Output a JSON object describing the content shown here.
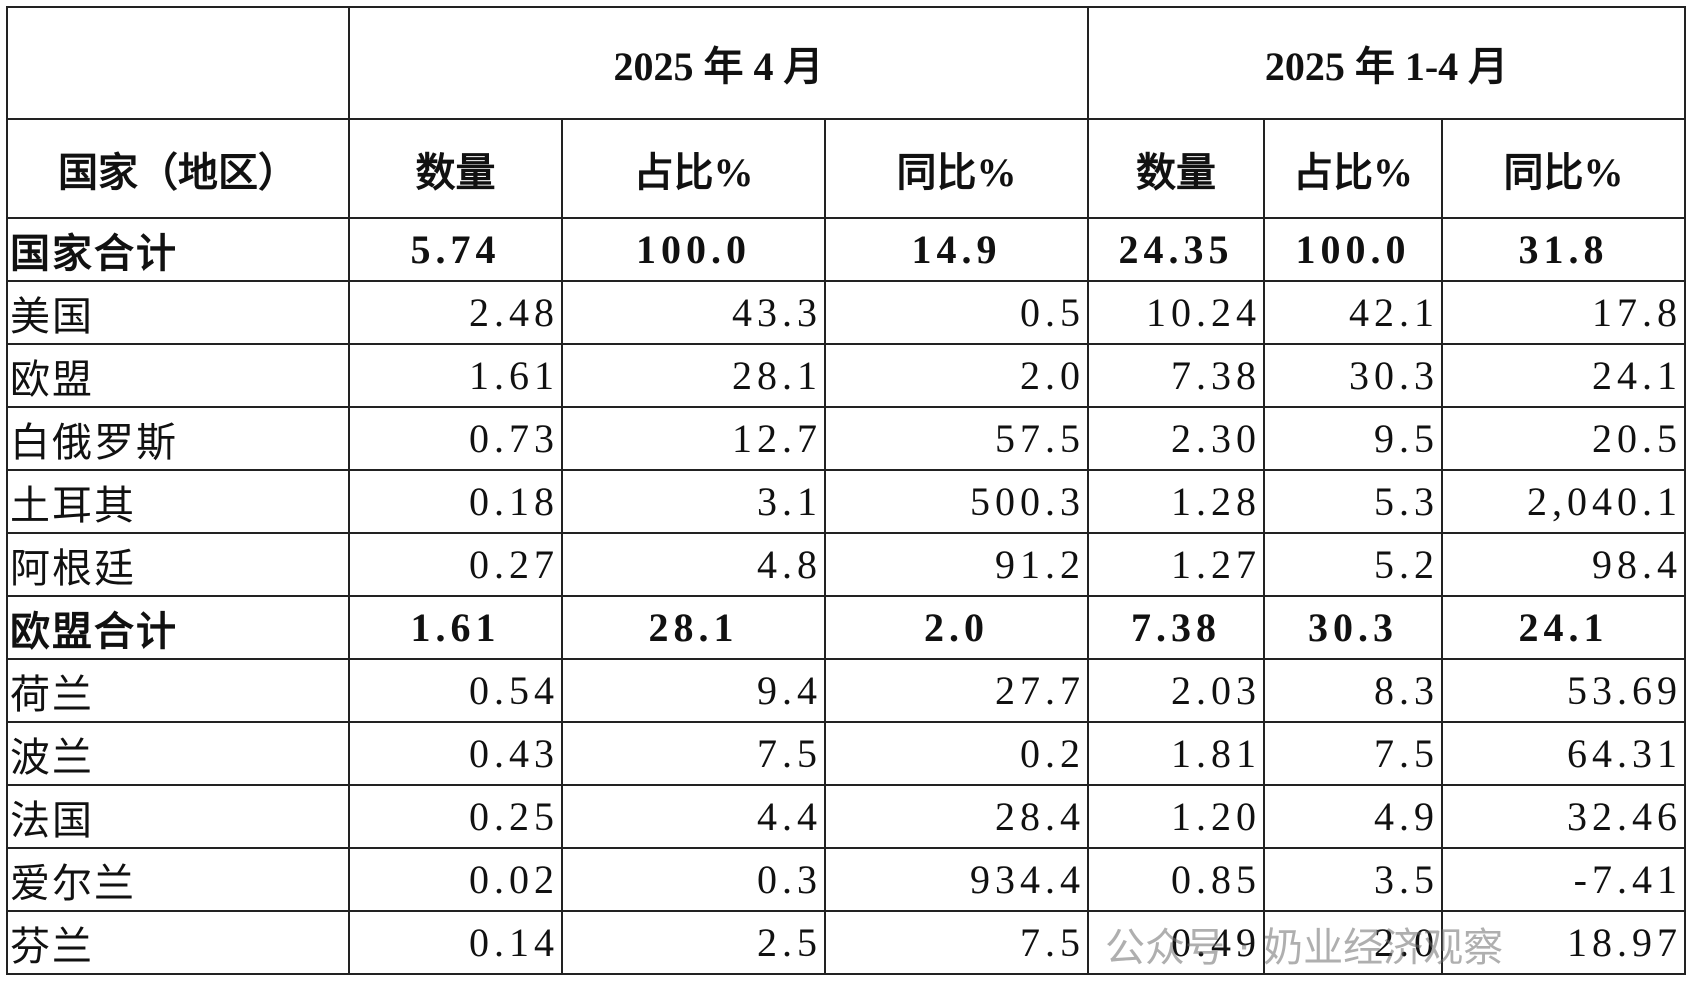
{
  "table": {
    "period_headers": [
      "2025 年 4 月",
      "2025 年 1-4 月"
    ],
    "column_headers": [
      "国家（地区）",
      "数量",
      "占比%",
      "同比%",
      "数量",
      "占比%",
      "同比%"
    ],
    "rows": [
      [
        "国家合计",
        "5.74",
        "100.0",
        "14.9",
        "24.35",
        "100.0",
        "31.8"
      ],
      [
        "美国",
        "2.48",
        "43.3",
        "0.5",
        "10.24",
        "42.1",
        "17.8"
      ],
      [
        "欧盟",
        "1.61",
        "28.1",
        "2.0",
        "7.38",
        "30.3",
        "24.1"
      ],
      [
        "白俄罗斯",
        "0.73",
        "12.7",
        "57.5",
        "2.30",
        "9.5",
        "20.5"
      ],
      [
        "土耳其",
        "0.18",
        "3.1",
        "500.3",
        "1.28",
        "5.3",
        "2,040.1"
      ],
      [
        "阿根廷",
        "0.27",
        "4.8",
        "91.2",
        "1.27",
        "5.2",
        "98.4"
      ],
      [
        "欧盟合计",
        "1.61",
        "28.1",
        "2.0",
        "7.38",
        "30.3",
        "24.1"
      ],
      [
        "荷兰",
        "0.54",
        "9.4",
        "27.7",
        "2.03",
        "8.3",
        "53.69"
      ],
      [
        "波兰",
        "0.43",
        "7.5",
        "0.2",
        "1.81",
        "7.5",
        "64.31"
      ],
      [
        "法国",
        "0.25",
        "4.4",
        "28.4",
        "1.20",
        "4.9",
        "32.46"
      ],
      [
        "爱尔兰",
        "0.02",
        "0.3",
        "934.4",
        "0.85",
        "3.5",
        "-7.41"
      ],
      [
        "芬兰",
        "0.14",
        "2.5",
        "7.5",
        "0.49",
        "2.0",
        "18.97"
      ]
    ]
  },
  "watermark": "公众号 · 奶业经济观察"
}
